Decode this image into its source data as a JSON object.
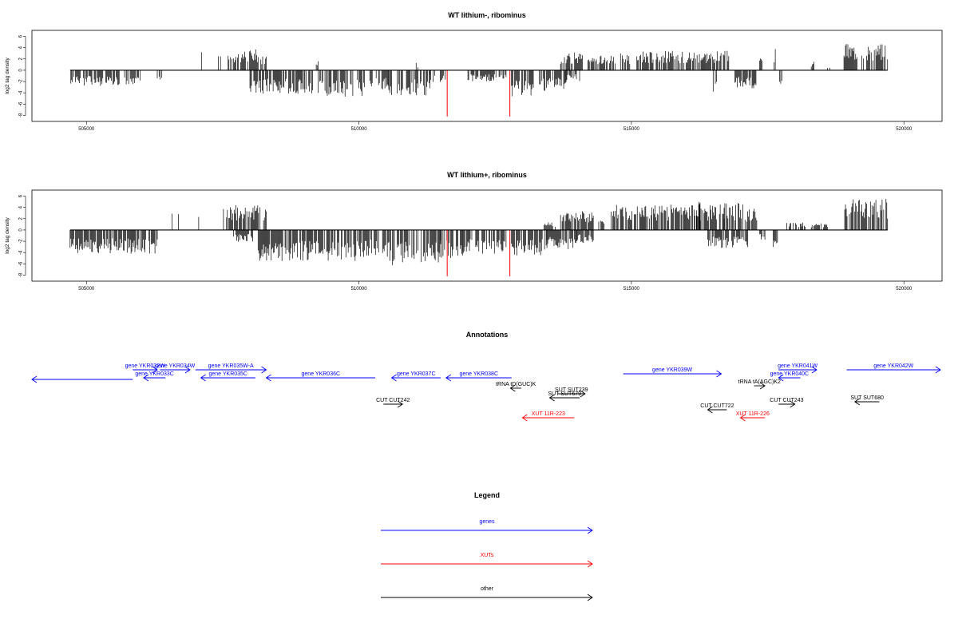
{
  "colors": {
    "gene": "#0000ff",
    "xut": "#ff0000",
    "other": "#000000",
    "highlight": "#ff0000"
  },
  "chart_data": [
    {
      "type": "bar",
      "title": "WT lithium-, ribominus",
      "ylabel": "log2 tag density",
      "xlim": [
        504000,
        520700
      ],
      "ylim": [
        -8.5,
        6.5
      ],
      "x_ticks": [
        "505000",
        "510000",
        "515000",
        "520000"
      ],
      "y_ticks": [
        "6",
        "4",
        "2",
        "0",
        "-2",
        "-4",
        "-6",
        "-8"
      ],
      "y_tick_values": [
        6,
        4,
        2,
        0,
        -2,
        -4,
        -6,
        -8
      ],
      "x_tick_values": [
        505000,
        510000,
        515000,
        520000
      ],
      "highlight_positions": [
        511620,
        512770
      ],
      "highlight_value": -8.2,
      "x_start": 504700,
      "x_end": 519700,
      "positive_segments": [
        [
          507100,
          507120,
          3.2
        ],
        [
          507420,
          507480,
          2.6
        ],
        [
          507600,
          508150,
          3.8
        ],
        [
          508200,
          508300,
          2.7
        ],
        [
          509200,
          509250,
          2.4
        ],
        [
          511050,
          511100,
          1.5
        ],
        [
          513700,
          514100,
          3.2
        ],
        [
          514200,
          514700,
          2.6
        ],
        [
          514800,
          515000,
          3.0
        ],
        [
          515100,
          516800,
          3.5
        ],
        [
          517600,
          517640,
          3.8
        ],
        [
          517350,
          517400,
          2.2
        ],
        [
          518300,
          518350,
          1.6
        ],
        [
          518600,
          518640,
          0.9
        ],
        [
          518900,
          519700,
          4.8
        ]
      ],
      "negative_segments": [
        [
          504700,
          505600,
          -2.8
        ],
        [
          505700,
          506000,
          -3.0
        ],
        [
          506300,
          506400,
          -1.8
        ],
        [
          508000,
          509150,
          -4.2
        ],
        [
          509250,
          510100,
          -4.8
        ],
        [
          510200,
          510550,
          -3.5
        ],
        [
          510550,
          510600,
          -6.0
        ],
        [
          510700,
          511300,
          -4.5
        ],
        [
          511300,
          511600,
          -2.2
        ],
        [
          512000,
          512700,
          -2.0
        ],
        [
          512800,
          513200,
          -4.8
        ],
        [
          513300,
          513800,
          -3.8
        ],
        [
          513800,
          514050,
          -2.0
        ],
        [
          516500,
          516560,
          -3.8
        ],
        [
          516900,
          517300,
          -3.2
        ],
        [
          517700,
          517760,
          -3.0
        ]
      ]
    },
    {
      "type": "bar",
      "title": "WT lithium+, ribominus",
      "ylabel": "log2 tag density",
      "xlim": [
        504000,
        520700
      ],
      "ylim": [
        -8.5,
        6.5
      ],
      "x_ticks": [
        "505000",
        "510000",
        "515000",
        "520000"
      ],
      "y_ticks": [
        "6",
        "4",
        "2",
        "0",
        "-2",
        "-4",
        "-6",
        "-8"
      ],
      "y_tick_values": [
        6,
        4,
        2,
        0,
        -2,
        -4,
        -6,
        -8
      ],
      "x_tick_values": [
        505000,
        510000,
        515000,
        520000
      ],
      "highlight_positions": [
        511620,
        512770
      ],
      "highlight_value": -8.2,
      "x_start": 504700,
      "x_end": 519700,
      "positive_segments": [
        [
          506560,
          506580,
          2.9
        ],
        [
          506680,
          506700,
          2.8
        ],
        [
          507050,
          507070,
          2.3
        ],
        [
          507500,
          508200,
          4.5
        ],
        [
          508250,
          508300,
          4.8
        ],
        [
          513400,
          513600,
          1.5
        ],
        [
          513700,
          514300,
          3.4
        ],
        [
          514400,
          514500,
          1.8
        ],
        [
          514600,
          516700,
          4.7
        ],
        [
          516700,
          517100,
          4.9
        ],
        [
          516200,
          516260,
          6.0
        ],
        [
          517100,
          517300,
          4.0
        ],
        [
          517850,
          518200,
          1.5
        ],
        [
          518300,
          518600,
          1.2
        ],
        [
          518900,
          519700,
          5.6
        ]
      ],
      "negative_segments": [
        [
          504700,
          506300,
          -4.2
        ],
        [
          507700,
          508050,
          -2.1
        ],
        [
          508150,
          510100,
          -5.5
        ],
        [
          510100,
          510550,
          -4.8
        ],
        [
          510550,
          510650,
          -8.2
        ],
        [
          510700,
          511500,
          -5.8
        ],
        [
          511500,
          511900,
          -5.0
        ],
        [
          511900,
          512700,
          -4.5
        ],
        [
          512800,
          513450,
          -4.5
        ],
        [
          513450,
          514000,
          -3.5
        ],
        [
          514000,
          514300,
          -2.3
        ],
        [
          516400,
          517150,
          -3.2
        ],
        [
          517350,
          517450,
          -1.8
        ],
        [
          517600,
          517680,
          -3.5
        ]
      ]
    }
  ],
  "annotations_title": "Annotations",
  "annotation_features": [
    {
      "label": "",
      "kind": "gene",
      "dir": "left",
      "x1": 504000,
      "x2": 505850,
      "row": 1.2
    },
    {
      "label": "gene YKR032W",
      "kind": "gene",
      "dir": "right",
      "x1": 505850,
      "x2": 506300,
      "row": 0
    },
    {
      "label": "gene YKR033C",
      "kind": "gene",
      "dir": "left",
      "x1": 506050,
      "x2": 506450,
      "row": 1
    },
    {
      "label": "gene YKR034W",
      "kind": "gene",
      "dir": "right",
      "x1": 506350,
      "x2": 506900,
      "row": 0
    },
    {
      "label": "gene YKR035W-A",
      "kind": "gene",
      "dir": "right",
      "x1": 507000,
      "x2": 508300,
      "row": 0
    },
    {
      "label": "gene YKR035C",
      "kind": "gene",
      "dir": "left",
      "x1": 507100,
      "x2": 508100,
      "row": 1
    },
    {
      "label": "gene YKR036C",
      "kind": "gene",
      "dir": "left",
      "x1": 508300,
      "x2": 510300,
      "row": 1
    },
    {
      "label": "gene YKR037C",
      "kind": "gene",
      "dir": "left",
      "x1": 510600,
      "x2": 511500,
      "row": 1
    },
    {
      "label": "gene YKR038C",
      "kind": "gene",
      "dir": "left",
      "x1": 511600,
      "x2": 512800,
      "row": 1
    },
    {
      "label": "tRNA tD(GUC)K",
      "kind": "other",
      "dir": "left",
      "x1": 512780,
      "x2": 512980,
      "row": 2.3
    },
    {
      "label": "SUT SUT239",
      "kind": "other",
      "dir": "right",
      "x1": 513650,
      "x2": 514150,
      "row": 3
    },
    {
      "label": "SUT SUT679",
      "kind": "other",
      "dir": "left",
      "x1": 513500,
      "x2": 514050,
      "row": 3.5
    },
    {
      "label": "CUT CUT242",
      "kind": "other",
      "dir": "right",
      "x1": 510450,
      "x2": 510800,
      "row": 4.3
    },
    {
      "label": "XUT 11R-223",
      "kind": "xut",
      "dir": "left",
      "x1": 513000,
      "x2": 513950,
      "row": 6
    },
    {
      "label": "gene YKR039W",
      "kind": "gene",
      "dir": "right",
      "x1": 514850,
      "x2": 516650,
      "row": 0.5
    },
    {
      "label": "CUT CUT722",
      "kind": "other",
      "dir": "left",
      "x1": 516400,
      "x2": 516750,
      "row": 5
    },
    {
      "label": "XUT 11R-226",
      "kind": "xut",
      "dir": "left",
      "x1": 517000,
      "x2": 517450,
      "row": 6
    },
    {
      "label": "CUT CUT243",
      "kind": "other",
      "dir": "right",
      "x1": 517700,
      "x2": 518000,
      "row": 4.3
    },
    {
      "label": "tRNA tA(AGC)K2",
      "kind": "other",
      "dir": "right",
      "x1": 517250,
      "x2": 517450,
      "row": 2
    },
    {
      "label": "gene YKR040C",
      "kind": "gene",
      "dir": "left",
      "x1": 517700,
      "x2": 518100,
      "row": 1
    },
    {
      "label": "gene YKR041W",
      "kind": "gene",
      "dir": "right",
      "x1": 517700,
      "x2": 518400,
      "row": 0
    },
    {
      "label": "gene YKR042W",
      "kind": "gene",
      "dir": "right",
      "x1": 518950,
      "x2": 520700,
      "row": 0
    },
    {
      "label": "SUT SUT680",
      "kind": "other",
      "dir": "left",
      "x1": 519100,
      "x2": 519550,
      "row": 4
    }
  ],
  "legend_title": "Legend",
  "legend_items": [
    {
      "label": "genes",
      "kind": "gene"
    },
    {
      "label": "XUTs",
      "kind": "xut"
    },
    {
      "label": "other",
      "kind": "other"
    }
  ]
}
